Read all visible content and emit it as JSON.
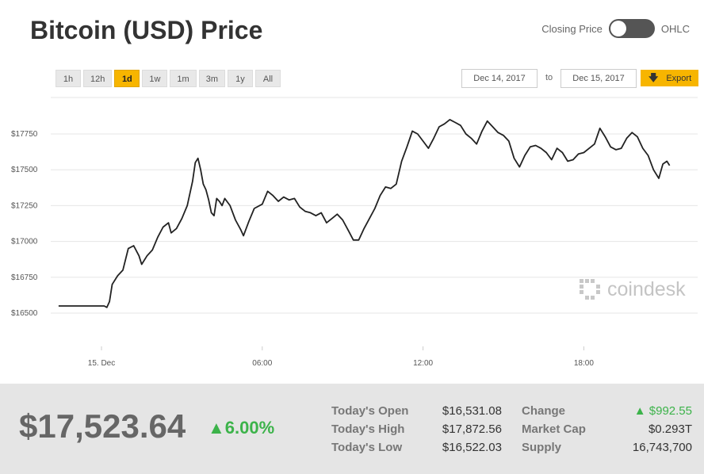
{
  "header": {
    "title": "Bitcoin (USD) Price"
  },
  "toggle": {
    "left_label": "Closing Price",
    "right_label": "OHLC"
  },
  "ranges": [
    "1h",
    "12h",
    "1d",
    "1w",
    "1m",
    "3m",
    "1y",
    "All"
  ],
  "active_range": "1d",
  "date_from": "Dec 14, 2017",
  "date_to_label": "to",
  "date_to": "Dec 15, 2017",
  "export_label": "Export",
  "watermark": "coindesk",
  "colors": {
    "accent": "#f7b500",
    "line": "#222222",
    "positive": "#3cb34a"
  },
  "chart_data": {
    "type": "line",
    "title": "",
    "xlabel": "",
    "ylabel": "",
    "x_tick_labels": [
      "15. Dec",
      "06:00",
      "12:00",
      "18:00"
    ],
    "y_tick_labels": [
      "$16500",
      "$16750",
      "$17000",
      "$17250",
      "$17500",
      "$17750"
    ],
    "ylim": [
      16430,
      17900
    ],
    "grid": true,
    "x_unit": "hours",
    "x_range": [
      -1.6,
      21.2
    ],
    "series": [
      {
        "values": [
          [
            -1.6,
            16550
          ],
          [
            0.1,
            16550
          ],
          [
            0.2,
            16540
          ],
          [
            0.3,
            16580
          ],
          [
            0.4,
            16700
          ],
          [
            0.6,
            16760
          ],
          [
            0.8,
            16800
          ],
          [
            1.0,
            16950
          ],
          [
            1.2,
            16970
          ],
          [
            1.4,
            16900
          ],
          [
            1.5,
            16840
          ],
          [
            1.7,
            16900
          ],
          [
            1.9,
            16940
          ],
          [
            2.1,
            17030
          ],
          [
            2.3,
            17100
          ],
          [
            2.5,
            17130
          ],
          [
            2.6,
            17060
          ],
          [
            2.8,
            17090
          ],
          [
            3.0,
            17160
          ],
          [
            3.2,
            17250
          ],
          [
            3.4,
            17420
          ],
          [
            3.5,
            17550
          ],
          [
            3.6,
            17580
          ],
          [
            3.7,
            17500
          ],
          [
            3.8,
            17400
          ],
          [
            3.9,
            17360
          ],
          [
            4.0,
            17290
          ],
          [
            4.1,
            17200
          ],
          [
            4.2,
            17180
          ],
          [
            4.3,
            17300
          ],
          [
            4.4,
            17280
          ],
          [
            4.5,
            17250
          ],
          [
            4.6,
            17300
          ],
          [
            4.8,
            17250
          ],
          [
            5.0,
            17150
          ],
          [
            5.2,
            17080
          ],
          [
            5.3,
            17040
          ],
          [
            5.5,
            17140
          ],
          [
            5.7,
            17230
          ],
          [
            6.0,
            17260
          ],
          [
            6.2,
            17350
          ],
          [
            6.4,
            17320
          ],
          [
            6.6,
            17280
          ],
          [
            6.8,
            17310
          ],
          [
            7.0,
            17290
          ],
          [
            7.2,
            17300
          ],
          [
            7.4,
            17240
          ],
          [
            7.6,
            17210
          ],
          [
            7.8,
            17200
          ],
          [
            8.0,
            17180
          ],
          [
            8.2,
            17200
          ],
          [
            8.4,
            17130
          ],
          [
            8.6,
            17160
          ],
          [
            8.8,
            17190
          ],
          [
            9.0,
            17150
          ],
          [
            9.2,
            17080
          ],
          [
            9.4,
            17010
          ],
          [
            9.6,
            17010
          ],
          [
            9.8,
            17090
          ],
          [
            10.0,
            17160
          ],
          [
            10.2,
            17230
          ],
          [
            10.4,
            17320
          ],
          [
            10.6,
            17380
          ],
          [
            10.8,
            17370
          ],
          [
            11.0,
            17400
          ],
          [
            11.2,
            17560
          ],
          [
            11.4,
            17660
          ],
          [
            11.6,
            17770
          ],
          [
            11.8,
            17750
          ],
          [
            12.0,
            17700
          ],
          [
            12.2,
            17650
          ],
          [
            12.4,
            17720
          ],
          [
            12.6,
            17800
          ],
          [
            12.8,
            17820
          ],
          [
            13.0,
            17850
          ],
          [
            13.2,
            17830
          ],
          [
            13.4,
            17810
          ],
          [
            13.6,
            17750
          ],
          [
            13.8,
            17720
          ],
          [
            14.0,
            17680
          ],
          [
            14.2,
            17770
          ],
          [
            14.4,
            17840
          ],
          [
            14.6,
            17800
          ],
          [
            14.8,
            17760
          ],
          [
            15.0,
            17740
          ],
          [
            15.2,
            17700
          ],
          [
            15.4,
            17580
          ],
          [
            15.6,
            17520
          ],
          [
            15.8,
            17600
          ],
          [
            16.0,
            17660
          ],
          [
            16.2,
            17670
          ],
          [
            16.4,
            17650
          ],
          [
            16.6,
            17620
          ],
          [
            16.8,
            17570
          ],
          [
            17.0,
            17650
          ],
          [
            17.2,
            17620
          ],
          [
            17.4,
            17560
          ],
          [
            17.6,
            17570
          ],
          [
            17.8,
            17610
          ],
          [
            18.0,
            17620
          ],
          [
            18.2,
            17650
          ],
          [
            18.4,
            17680
          ],
          [
            18.6,
            17790
          ],
          [
            18.8,
            17730
          ],
          [
            19.0,
            17660
          ],
          [
            19.2,
            17640
          ],
          [
            19.4,
            17650
          ],
          [
            19.6,
            17720
          ],
          [
            19.8,
            17760
          ],
          [
            20.0,
            17730
          ],
          [
            20.2,
            17650
          ],
          [
            20.4,
            17600
          ],
          [
            20.6,
            17500
          ],
          [
            20.8,
            17440
          ],
          [
            20.95,
            17540
          ],
          [
            21.1,
            17560
          ],
          [
            21.2,
            17530
          ]
        ]
      }
    ]
  },
  "footer": {
    "price": "$17,523.64",
    "pct": "▲6.00%",
    "stats": [
      {
        "label": "Today's Open",
        "value": "$16,531.08"
      },
      {
        "label": "Today's High",
        "value": "$17,872.56"
      },
      {
        "label": "Today's Low",
        "value": "$16,522.03"
      }
    ],
    "stats2": [
      {
        "label": "Change",
        "value": "▲ $992.55"
      },
      {
        "label": "Market Cap",
        "value": "$0.293T"
      },
      {
        "label": "Supply",
        "value": "16,743,700"
      }
    ]
  }
}
